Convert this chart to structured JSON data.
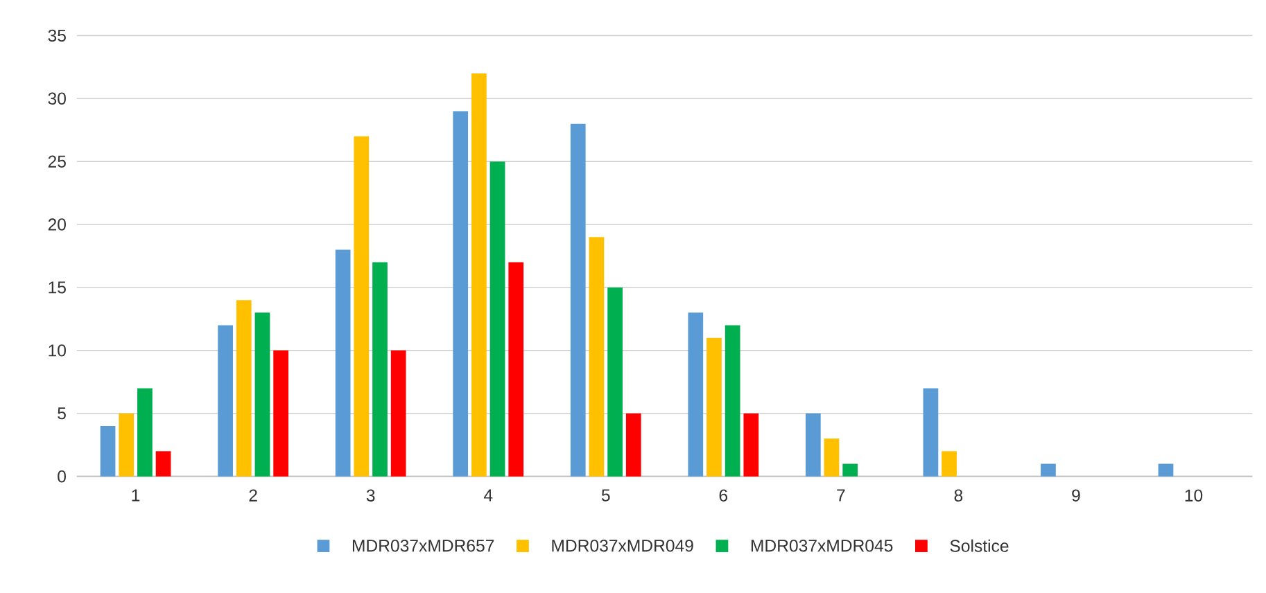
{
  "chart_data": {
    "type": "bar",
    "categories": [
      "1",
      "2",
      "3",
      "4",
      "5",
      "6",
      "7",
      "8",
      "9",
      "10"
    ],
    "series": [
      {
        "name": "MDR037xMDR657",
        "color": "#5b9bd5",
        "values": [
          4,
          12,
          18,
          29,
          28,
          13,
          5,
          7,
          1,
          1
        ]
      },
      {
        "name": "MDR037xMDR049",
        "color": "#ffc000",
        "values": [
          5,
          14,
          27,
          32,
          19,
          11,
          3,
          2,
          0,
          0
        ]
      },
      {
        "name": "MDR037xMDR045",
        "color": "#00b050",
        "values": [
          7,
          13,
          17,
          25,
          15,
          12,
          1,
          0,
          0,
          0
        ]
      },
      {
        "name": "Solstice",
        "color": "#ff0000",
        "values": [
          2,
          10,
          10,
          17,
          5,
          5,
          0,
          0,
          0,
          0
        ]
      }
    ],
    "ylim": [
      0,
      35
    ],
    "yticks": [
      0,
      5,
      10,
      15,
      20,
      25,
      30,
      35
    ],
    "grid": "y",
    "legend": "bottom"
  }
}
